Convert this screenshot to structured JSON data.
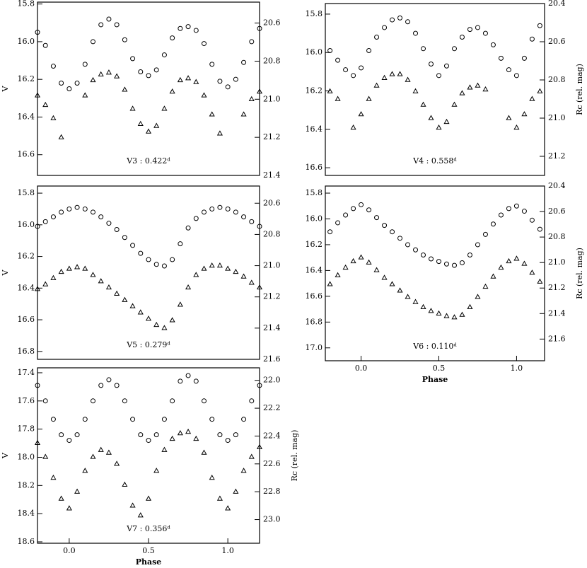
{
  "chart_data": [
    {
      "type": "scatter",
      "label": "V3 : 0.422ᵈ",
      "ylabel": "V",
      "xlim": [
        -0.2,
        1.2
      ],
      "ylim": [
        16.71,
        15.79
      ],
      "y2lim": [
        21.4,
        20.49
      ],
      "yticks": [
        15.8,
        {
          "value": 16,
          "label": "16.0"
        },
        16.2,
        16.4,
        16.6
      ],
      "y2ticks": [
        20.6,
        20.8,
        {
          "value": 21,
          "label": "21.0"
        },
        21.2,
        21.4
      ],
      "x": [
        -0.2,
        -0.15,
        -0.1,
        -0.05,
        0,
        0.05,
        0.1,
        0.15,
        0.2,
        0.25,
        0.3,
        0.35,
        0.4,
        0.45,
        0.5,
        0.55,
        0.6,
        0.65,
        0.7,
        0.75,
        0.8,
        0.85,
        0.9,
        0.95,
        1,
        1.05,
        1.1,
        1.15,
        1.2
      ],
      "series": [
        {
          "marker": "circle",
          "color": "#000000",
          "values": [
            15.95,
            16.02,
            16.13,
            16.22,
            16.25,
            16.22,
            16.12,
            16.0,
            15.91,
            15.88,
            15.91,
            15.99,
            16.09,
            16.16,
            16.18,
            16.15,
            16.07,
            15.98,
            15.93,
            15.92,
            15.94,
            16.01,
            16.12,
            16.21,
            16.24,
            16.2,
            16.11,
            16.0,
            15.93
          ]
        },
        {
          "marker": "triangle",
          "axis": "y2",
          "color": "#000000",
          "values": [
            20.98,
            21.03,
            21.1,
            21.2,
            null,
            null,
            20.98,
            20.9,
            20.87,
            20.86,
            20.88,
            20.95,
            21.05,
            21.13,
            21.17,
            21.14,
            21.05,
            20.96,
            20.9,
            20.89,
            20.91,
            20.98,
            21.08,
            21.18,
            null,
            null,
            21.08,
            21.0,
            20.96
          ]
        }
      ]
    },
    {
      "type": "scatter",
      "label": "V4 : 0.558ᵈ",
      "y2label": "Rc (rel. mag)",
      "xlim": [
        -0.23,
        1.18
      ],
      "ylim": [
        16.64,
        15.745
      ],
      "y2lim": [
        21.3,
        20.4
      ],
      "yticks": [
        15.8,
        {
          "value": 16,
          "label": "16.0"
        },
        16.2,
        16.4,
        16.6
      ],
      "y2ticks": [
        20.4,
        20.6,
        20.8,
        {
          "value": 21,
          "label": "21.0"
        },
        21.2
      ],
      "x": [
        -0.2,
        -0.15,
        -0.1,
        -0.05,
        0,
        0.05,
        0.1,
        0.15,
        0.2,
        0.25,
        0.3,
        0.35,
        0.4,
        0.45,
        0.5,
        0.55,
        0.6,
        0.65,
        0.7,
        0.75,
        0.8,
        0.85,
        0.9,
        0.95,
        1,
        1.05,
        1.1,
        1.15
      ],
      "series": [
        {
          "marker": "circle",
          "color": "#000000",
          "values": [
            15.99,
            16.04,
            16.09,
            16.12,
            16.08,
            15.99,
            15.92,
            15.87,
            15.83,
            15.82,
            15.84,
            15.9,
            15.98,
            16.06,
            16.12,
            16.07,
            15.98,
            15.92,
            15.88,
            15.87,
            15.9,
            15.96,
            16.03,
            16.09,
            16.12,
            16.03,
            15.93,
            15.86
          ]
        },
        {
          "marker": "triangle",
          "axis": "y2",
          "color": "#000000",
          "values": [
            20.86,
            20.9,
            null,
            21.05,
            20.98,
            20.9,
            20.83,
            20.79,
            20.77,
            20.77,
            20.8,
            20.86,
            20.93,
            21.0,
            21.05,
            21.02,
            20.93,
            20.87,
            20.84,
            20.83,
            20.85,
            null,
            null,
            21.0,
            21.05,
            20.98,
            20.9,
            20.86
          ]
        }
      ]
    },
    {
      "type": "scatter",
      "label": "V5 : 0.279ᵈ",
      "ylabel": "V",
      "xlim": [
        -0.2,
        1.2
      ],
      "ylim": [
        16.85,
        15.755
      ],
      "y2lim": [
        21.6,
        20.49
      ],
      "yticks": [
        15.8,
        {
          "value": 16,
          "label": "16.0"
        },
        16.2,
        16.4,
        16.6,
        16.8
      ],
      "y2ticks": [
        20.6,
        20.8,
        {
          "value": 21,
          "label": "21.0"
        },
        21.2,
        21.4,
        21.6
      ],
      "x": [
        -0.2,
        -0.15,
        -0.1,
        -0.05,
        0,
        0.05,
        0.1,
        0.15,
        0.2,
        0.25,
        0.3,
        0.35,
        0.4,
        0.45,
        0.5,
        0.55,
        0.6,
        0.65,
        0.7,
        0.75,
        0.8,
        0.85,
        0.9,
        0.95,
        1,
        1.05,
        1.1,
        1.15,
        1.2
      ],
      "series": [
        {
          "marker": "circle",
          "color": "#000000",
          "values": [
            16.01,
            15.98,
            15.95,
            15.92,
            15.9,
            15.89,
            15.9,
            15.92,
            15.95,
            15.99,
            16.03,
            16.08,
            16.13,
            16.18,
            16.22,
            16.25,
            16.26,
            16.22,
            16.12,
            16.02,
            15.96,
            15.92,
            15.9,
            15.89,
            15.9,
            15.92,
            15.95,
            15.98,
            16.01
          ]
        },
        {
          "marker": "triangle",
          "axis": "y2",
          "color": "#000000",
          "values": [
            21.15,
            21.12,
            21.08,
            21.04,
            21.02,
            21.01,
            21.02,
            21.06,
            21.1,
            21.14,
            21.18,
            21.22,
            21.26,
            21.3,
            21.34,
            21.38,
            21.4,
            21.35,
            21.25,
            21.14,
            21.06,
            21.02,
            21.0,
            21.0,
            21.02,
            21.04,
            21.07,
            21.11,
            21.14
          ]
        }
      ]
    },
    {
      "type": "scatter",
      "label": "V6 : 0.110ᵈ",
      "y2label": "Rc (rel. mag)",
      "xlabel": "Phase",
      "xlim": [
        -0.23,
        1.18
      ],
      "ylim": [
        17.1,
        15.745
      ],
      "y2lim": [
        21.77,
        20.4
      ],
      "xticks": [
        {
          "value": 0,
          "label": "0.0"
        },
        0.5,
        {
          "value": 1,
          "label": "1.0"
        }
      ],
      "yticks": [
        15.8,
        {
          "value": 16,
          "label": "16.0"
        },
        16.2,
        16.4,
        16.6,
        16.8,
        {
          "value": 17,
          "label": "17.0"
        }
      ],
      "y2ticks": [
        20.4,
        20.6,
        20.8,
        {
          "value": 21,
          "label": "21.0"
        },
        21.2,
        21.4,
        21.6
      ],
      "x": [
        -0.2,
        -0.15,
        -0.1,
        -0.05,
        0,
        0.05,
        0.1,
        0.15,
        0.2,
        0.25,
        0.3,
        0.35,
        0.4,
        0.45,
        0.5,
        0.55,
        0.6,
        0.65,
        0.7,
        0.75,
        0.8,
        0.85,
        0.9,
        0.95,
        1,
        1.05,
        1.1,
        1.15
      ],
      "series": [
        {
          "marker": "circle",
          "color": "#000000",
          "values": [
            16.1,
            16.03,
            15.97,
            15.92,
            15.89,
            15.93,
            15.99,
            16.05,
            16.1,
            16.15,
            16.2,
            16.24,
            16.28,
            16.31,
            16.33,
            16.35,
            16.36,
            16.34,
            16.28,
            16.2,
            16.12,
            16.04,
            15.97,
            15.92,
            15.9,
            15.94,
            16.01,
            16.08
          ]
        },
        {
          "marker": "triangle",
          "axis": "y2",
          "color": "#000000",
          "values": [
            21.17,
            21.1,
            21.04,
            20.99,
            20.96,
            21.0,
            21.06,
            21.12,
            21.17,
            21.22,
            21.27,
            21.31,
            21.35,
            21.38,
            21.4,
            21.42,
            21.43,
            21.41,
            21.35,
            21.27,
            21.19,
            21.11,
            21.04,
            20.99,
            20.97,
            21.01,
            21.08,
            21.15
          ]
        }
      ]
    },
    {
      "type": "scatter",
      "label": "V7 : 0.356ᵈ",
      "ylabel": "V",
      "y2label": "Rc (rel. mag)",
      "xlabel": "Phase",
      "xlim": [
        -0.2,
        1.2
      ],
      "ylim": [
        18.61,
        17.365
      ],
      "y2lim": [
        23.17,
        21.91
      ],
      "xticks": [
        {
          "value": 0,
          "label": "0.0"
        },
        0.5,
        {
          "value": 1,
          "label": "1.0"
        }
      ],
      "yticks": [
        17.4,
        17.6,
        17.8,
        {
          "value": 18,
          "label": "18.0"
        },
        18.2,
        18.4,
        18.6
      ],
      "y2ticks": [
        {
          "value": 22,
          "label": "22.0"
        },
        22.2,
        22.4,
        22.6,
        22.8,
        {
          "value": 23,
          "label": "23.0"
        }
      ],
      "x": [
        -0.2,
        -0.15,
        -0.1,
        -0.05,
        0,
        0.05,
        0.1,
        0.15,
        0.2,
        0.25,
        0.3,
        0.35,
        0.4,
        0.45,
        0.5,
        0.55,
        0.6,
        0.65,
        0.7,
        0.75,
        0.8,
        0.85,
        0.9,
        0.95,
        1,
        1.05,
        1.1,
        1.15,
        1.2
      ],
      "series": [
        {
          "marker": "circle",
          "color": "#000000",
          "values": [
            17.49,
            17.6,
            17.73,
            17.84,
            17.88,
            17.84,
            17.73,
            17.6,
            17.49,
            17.45,
            17.49,
            17.6,
            17.73,
            17.84,
            17.88,
            17.84,
            17.73,
            17.6,
            17.46,
            17.42,
            17.46,
            17.6,
            17.73,
            17.84,
            17.88,
            17.84,
            17.73,
            17.6,
            17.49
          ]
        },
        {
          "marker": "triangle",
          "axis": "y2",
          "color": "#000000",
          "values": [
            22.45,
            22.55,
            22.7,
            22.85,
            22.92,
            22.8,
            22.65,
            22.55,
            22.5,
            22.52,
            22.6,
            22.75,
            22.9,
            22.97,
            22.85,
            22.65,
            22.5,
            22.42,
            22.38,
            22.37,
            22.42,
            22.52,
            22.7,
            22.85,
            22.92,
            22.8,
            22.65,
            22.55,
            22.48
          ]
        }
      ]
    }
  ]
}
